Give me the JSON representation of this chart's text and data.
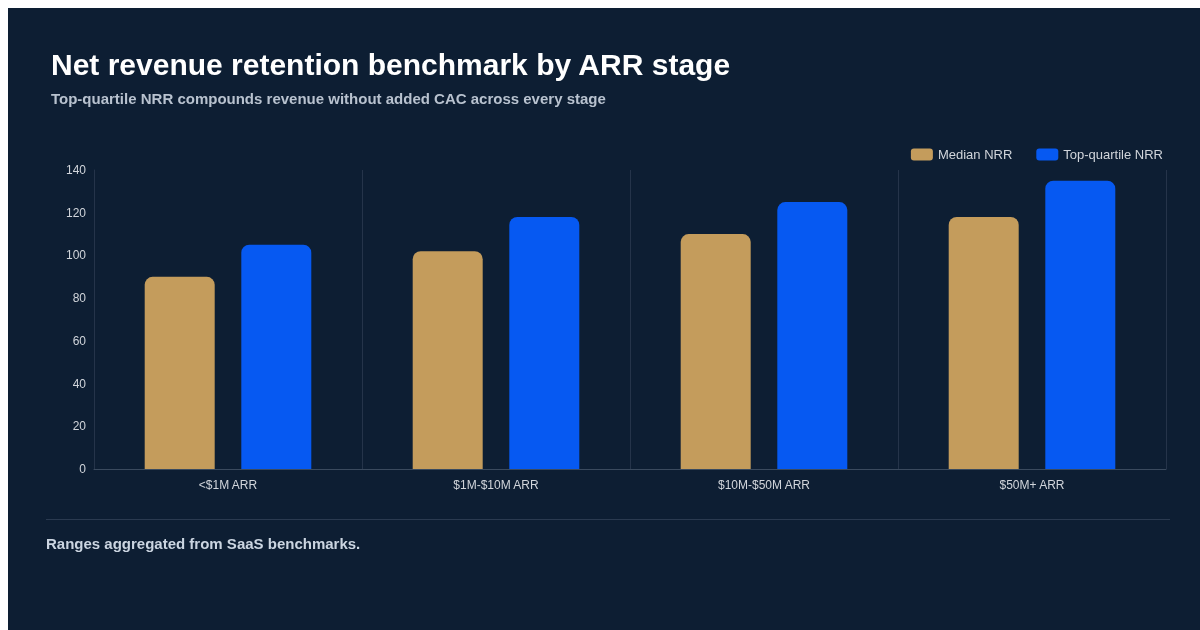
{
  "chart_data": {
    "type": "bar",
    "title": "Net revenue retention benchmark by ARR stage",
    "subtitle": "Top-quartile NRR compounds revenue without added CAC across every stage",
    "categories": [
      "<$1M ARR",
      "$1M-$10M ARR",
      "$10M-$50M ARR",
      "$50M+ ARR"
    ],
    "series": [
      {
        "name": "Median NRR",
        "color": "#c49c5c",
        "values": [
          90,
          102,
          110,
          118
        ]
      },
      {
        "name": "Top-quartile NRR",
        "color": "#0659f2",
        "values": [
          105,
          118,
          125,
          135
        ]
      }
    ],
    "ylim": [
      0,
      140
    ],
    "yticks": [
      0,
      20,
      40,
      60,
      80,
      100,
      120,
      140
    ],
    "grid": "x",
    "legend": "top right",
    "annotations": [
      "Ranges aggregated from SaaS benchmarks."
    ]
  }
}
